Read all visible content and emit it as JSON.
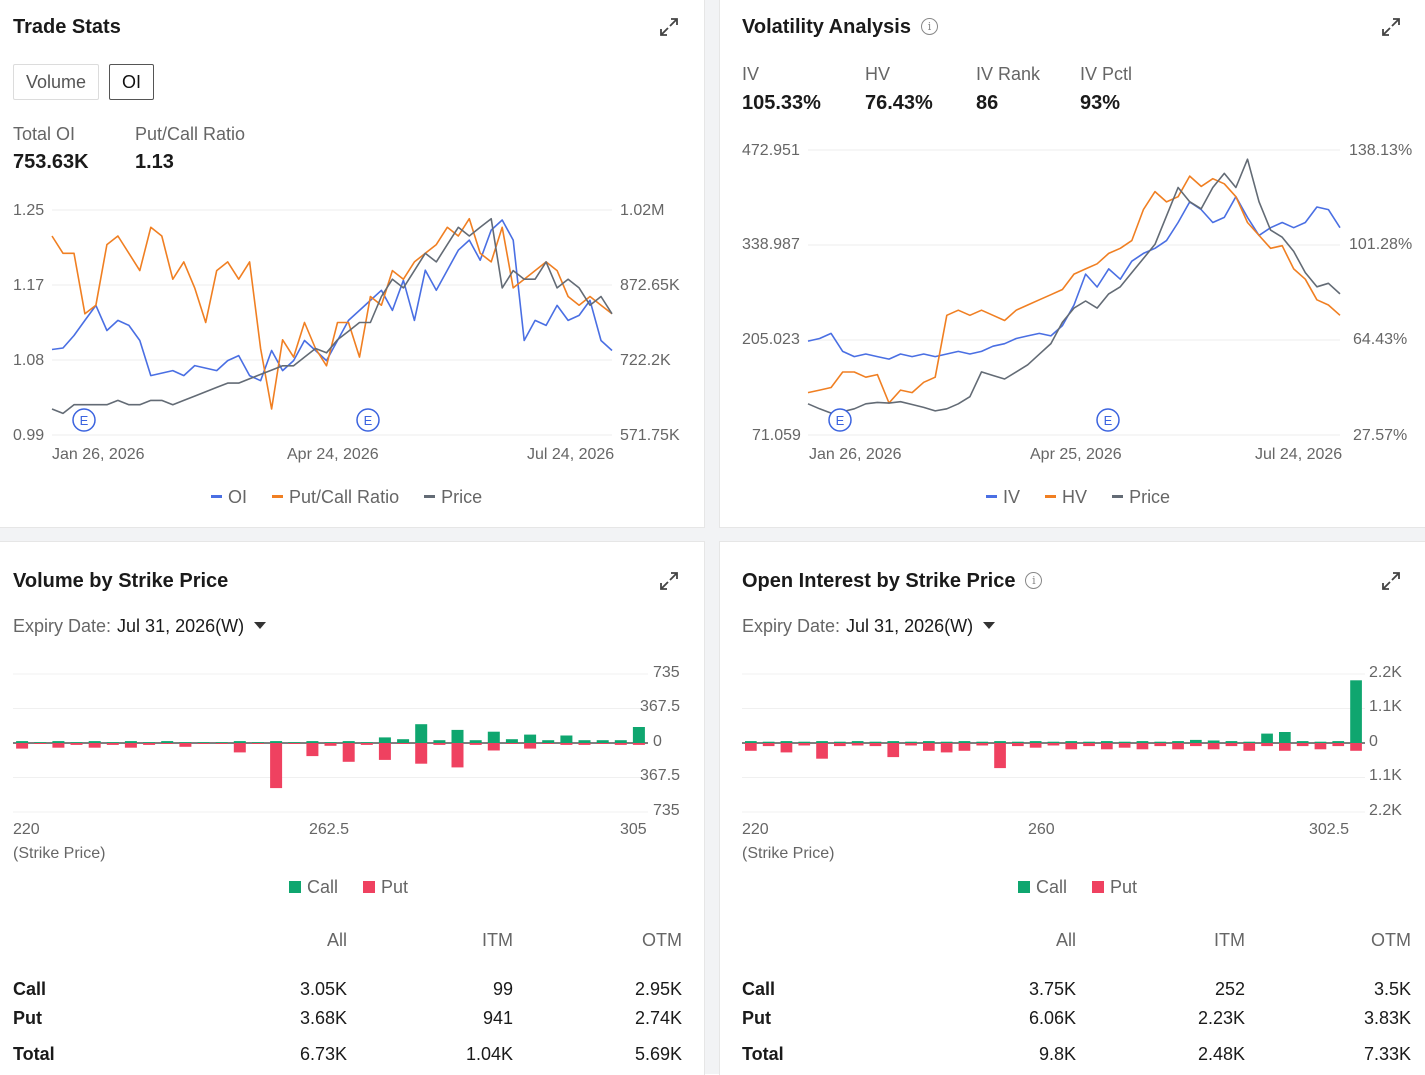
{
  "colors": {
    "blue": "#4a6fe3",
    "orange": "#f07f22",
    "gray": "#636b75",
    "green": "#0fa66f",
    "red": "#ef4160",
    "accent_e": "#3b63df"
  },
  "trade_stats": {
    "title": "Trade Stats",
    "tabs": [
      "Volume",
      "OI"
    ],
    "active_tab": "OI",
    "stats": [
      {
        "label": "Total OI",
        "value": "753.63K"
      },
      {
        "label": "Put/Call Ratio",
        "value": "1.13"
      }
    ],
    "y_left_ticks": [
      "1.25",
      "1.17",
      "1.08",
      "0.99"
    ],
    "y_right_ticks": [
      "1.02M",
      "872.65K",
      "722.2K",
      "571.75K"
    ],
    "x_ticks": [
      "Jan 26, 2026",
      "Apr 24, 2026",
      "Jul 24, 2026"
    ],
    "legend": [
      "OI",
      "Put/Call Ratio",
      "Price"
    ],
    "event_marker": "E"
  },
  "volatility": {
    "title": "Volatility Analysis",
    "info_icon": "info-icon",
    "stats": [
      {
        "label": "IV",
        "value": "105.33%"
      },
      {
        "label": "HV",
        "value": "76.43%"
      },
      {
        "label": "IV Rank",
        "value": "86"
      },
      {
        "label": "IV Pctl",
        "value": "93%"
      }
    ],
    "y_left_ticks": [
      "472.951",
      "338.987",
      "205.023",
      "71.059"
    ],
    "y_right_ticks": [
      "138.13%",
      "101.28%",
      "64.43%",
      "27.57%"
    ],
    "x_ticks": [
      "Jan 26, 2026",
      "Apr 25, 2026",
      "Jul 24, 2026"
    ],
    "legend": [
      "IV",
      "HV",
      "Price"
    ],
    "event_marker": "E"
  },
  "volume_strike": {
    "title": "Volume by Strike Price",
    "expiry_label": "Expiry Date:",
    "expiry_value": "Jul 31, 2026(W)",
    "y_ticks": [
      "735",
      "367.5",
      "0",
      "367.5",
      "735"
    ],
    "x_ticks": [
      "220",
      "262.5",
      "305"
    ],
    "x_unit": "(Strike Price)",
    "legend": [
      "Call",
      "Put"
    ],
    "table": {
      "headers": [
        "All",
        "ITM",
        "OTM"
      ],
      "rows": [
        {
          "label": "Call",
          "all": "3.05K",
          "itm": "99",
          "otm": "2.95K"
        },
        {
          "label": "Put",
          "all": "3.68K",
          "itm": "941",
          "otm": "2.74K"
        },
        {
          "label": "Total",
          "all": "6.73K",
          "itm": "1.04K",
          "otm": "5.69K"
        }
      ]
    }
  },
  "oi_strike": {
    "title": "Open Interest by Strike Price",
    "info_icon": "info-icon",
    "expiry_label": "Expiry Date:",
    "expiry_value": "Jul 31, 2026(W)",
    "y_ticks": [
      "2.2K",
      "1.1K",
      "0",
      "1.1K",
      "2.2K"
    ],
    "x_ticks": [
      "220",
      "260",
      "302.5"
    ],
    "x_unit": "(Strike Price)",
    "legend": [
      "Call",
      "Put"
    ],
    "table": {
      "headers": [
        "All",
        "ITM",
        "OTM"
      ],
      "rows": [
        {
          "label": "Call",
          "all": "3.75K",
          "itm": "252",
          "otm": "3.5K"
        },
        {
          "label": "Put",
          "all": "6.06K",
          "itm": "2.23K",
          "otm": "3.83K"
        },
        {
          "label": "Total",
          "all": "9.8K",
          "itm": "2.48K",
          "otm": "7.33K"
        }
      ]
    }
  },
  "chart_data": [
    {
      "type": "line",
      "name": "trade-stats-oi",
      "x_range": [
        "Jan 2026",
        "Jul 2026"
      ],
      "series": [
        {
          "name": "OI",
          "axis": "right",
          "values": [
            742,
            745,
            770,
            800,
            830,
            780,
            800,
            790,
            760,
            690,
            695,
            700,
            690,
            710,
            705,
            700,
            720,
            730,
            690,
            680,
            740,
            700,
            720,
            760,
            740,
            720,
            760,
            800,
            820,
            840,
            860,
            820,
            880,
            800,
            900,
            860,
            900,
            940,
            960,
            920,
            980,
            1000,
            960,
            760,
            800,
            790,
            830,
            800,
            810,
            840,
            760,
            740
          ]
        },
        {
          "name": "Put/Call Ratio",
          "axis": "left",
          "values": [
            1.22,
            1.2,
            1.2,
            1.13,
            1.14,
            1.21,
            1.22,
            1.2,
            1.18,
            1.23,
            1.22,
            1.17,
            1.19,
            1.16,
            1.12,
            1.18,
            1.19,
            1.17,
            1.19,
            1.09,
            1.02,
            1.1,
            1.08,
            1.12,
            1.09,
            1.07,
            1.12,
            1.12,
            1.08,
            1.15,
            1.14,
            1.18,
            1.17,
            1.19,
            1.2,
            1.21,
            1.23,
            1.22,
            1.24,
            1.2,
            1.19,
            1.23,
            1.16,
            1.17,
            1.18,
            1.19,
            1.18,
            1.15,
            1.14,
            1.15,
            1.14,
            1.13
          ]
        },
        {
          "name": "Price",
          "axis": "left",
          "values": [
            1.02,
            1.015,
            1.025,
            1.025,
            1.025,
            1.025,
            1.03,
            1.025,
            1.025,
            1.03,
            1.03,
            1.025,
            1.03,
            1.035,
            1.04,
            1.045,
            1.05,
            1.05,
            1.055,
            1.06,
            1.065,
            1.07,
            1.07,
            1.08,
            1.09,
            1.085,
            1.1,
            1.11,
            1.12,
            1.12,
            1.15,
            1.17,
            1.16,
            1.18,
            1.2,
            1.19,
            1.21,
            1.23,
            1.22,
            1.23,
            1.24,
            1.16,
            1.18,
            1.17,
            1.17,
            1.19,
            1.16,
            1.17,
            1.16,
            1.14,
            1.15,
            1.13
          ]
        }
      ],
      "y_left_range": [
        0.99,
        1.25
      ],
      "y_right_range": [
        571.75,
        1020
      ],
      "annotations": [
        "E",
        "E"
      ]
    },
    {
      "type": "line",
      "name": "volatility-analysis",
      "x_range": [
        "Jan 2026",
        "Jul 2026"
      ],
      "series": [
        {
          "name": "IV",
          "axis": "right",
          "values": [
            64,
            65,
            67,
            60,
            58,
            59,
            58,
            57,
            59,
            58,
            59,
            58,
            59,
            60,
            59,
            60,
            62,
            63,
            65,
            66,
            67,
            66,
            70,
            78,
            90,
            85,
            92,
            88,
            95,
            98,
            100,
            103,
            110,
            118,
            115,
            110,
            112,
            120,
            112,
            105,
            108,
            110,
            108,
            110,
            116,
            115,
            108
          ]
        },
        {
          "name": "HV",
          "axis": "right",
          "values": [
            44,
            45,
            46,
            52,
            52,
            50,
            51,
            40,
            45,
            44,
            48,
            50,
            74,
            76,
            74,
            76,
            74,
            72,
            76,
            78,
            80,
            82,
            84,
            90,
            92,
            94,
            98,
            100,
            103,
            115,
            122,
            118,
            120,
            128,
            124,
            127,
            125,
            120,
            110,
            105,
            100,
            101,
            92,
            88,
            80,
            78,
            74
          ]
        },
        {
          "name": "Price",
          "axis": "left",
          "values": [
            115,
            108,
            102,
            104,
            108,
            115,
            117,
            116,
            118,
            114,
            110,
            105,
            108,
            115,
            125,
            160,
            155,
            150,
            160,
            170,
            185,
            200,
            230,
            250,
            260,
            250,
            270,
            280,
            300,
            320,
            340,
            380,
            420,
            400,
            390,
            420,
            440,
            420,
            460,
            400,
            360,
            350,
            330,
            300,
            280,
            285,
            270
          ]
        }
      ],
      "y_left_range": [
        71.059,
        472.951
      ],
      "y_right_range": [
        27.57,
        138.13
      ],
      "annotations": [
        "E",
        "E"
      ]
    },
    {
      "type": "bar",
      "name": "volume-by-strike",
      "x_range": [
        220,
        305
      ],
      "categories": [
        "220",
        "222.5",
        "225",
        "227.5",
        "230",
        "232.5",
        "235",
        "237.5",
        "240",
        "242.5",
        "245",
        "247.5",
        "250",
        "252.5",
        "255",
        "257.5",
        "260",
        "262.5",
        "265",
        "267.5",
        "270",
        "272.5",
        "275",
        "277.5",
        "280",
        "282.5",
        "285",
        "287.5",
        "290",
        "292.5",
        "295",
        "297.5",
        "300",
        "302.5",
        "305"
      ],
      "series": [
        {
          "name": "Call",
          "values": [
            20,
            10,
            20,
            10,
            20,
            10,
            20,
            10,
            20,
            10,
            10,
            10,
            20,
            10,
            20,
            10,
            20,
            10,
            20,
            10,
            60,
            40,
            200,
            30,
            140,
            30,
            120,
            40,
            90,
            30,
            80,
            30,
            30,
            30,
            170
          ]
        },
        {
          "name": "Put",
          "values": [
            -60,
            -10,
            -50,
            -20,
            -50,
            -20,
            -50,
            -20,
            -10,
            -40,
            -10,
            -10,
            -100,
            -10,
            -480,
            -10,
            -140,
            -30,
            -200,
            -20,
            -180,
            -10,
            -220,
            -20,
            -260,
            -20,
            -80,
            -10,
            -60,
            -10,
            -20,
            -20,
            -10,
            -20,
            -20
          ]
        }
      ],
      "y_range": [
        -735,
        735
      ],
      "ylabel": "",
      "xlabel": "(Strike Price)"
    },
    {
      "type": "bar",
      "name": "oi-by-strike",
      "x_range": [
        220,
        302.5
      ],
      "categories": [
        "220",
        "222.5",
        "225",
        "227.5",
        "230",
        "232.5",
        "235",
        "237.5",
        "240",
        "242.5",
        "245",
        "247.5",
        "250",
        "252.5",
        "255",
        "257.5",
        "260",
        "262.5",
        "265",
        "267.5",
        "270",
        "272.5",
        "275",
        "277.5",
        "280",
        "282.5",
        "285",
        "287.5",
        "290",
        "292.5",
        "295",
        "297.5",
        "300",
        "302.5",
        "305"
      ],
      "series": [
        {
          "name": "Call",
          "values": [
            60,
            40,
            60,
            40,
            60,
            40,
            60,
            40,
            60,
            40,
            60,
            40,
            60,
            40,
            60,
            40,
            60,
            40,
            60,
            40,
            60,
            40,
            60,
            40,
            60,
            100,
            80,
            60,
            40,
            300,
            350,
            60,
            40,
            60,
            2000
          ]
        },
        {
          "name": "Put",
          "values": [
            -250,
            -100,
            -300,
            -80,
            -500,
            -100,
            -80,
            -100,
            -450,
            -80,
            -250,
            -300,
            -250,
            -80,
            -800,
            -100,
            -150,
            -80,
            -200,
            -100,
            -200,
            -150,
            -200,
            -100,
            -200,
            -100,
            -200,
            -100,
            -250,
            -100,
            -250,
            -100,
            -200,
            -100,
            -250
          ]
        }
      ],
      "y_range": [
        -2200,
        2200
      ],
      "ylabel": "",
      "xlabel": "(Strike Price)"
    }
  ]
}
